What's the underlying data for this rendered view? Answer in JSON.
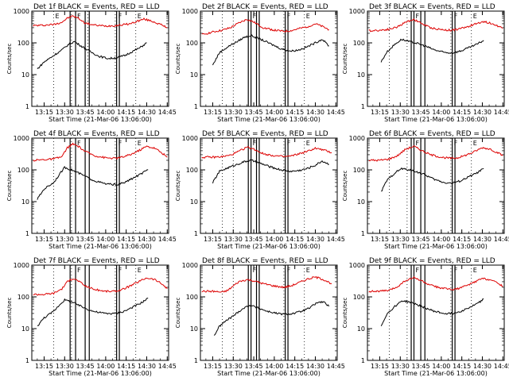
{
  "figure": {
    "x_tick_labels": [
      "13:15",
      "13:30",
      "13:45",
      "14:00",
      "14:15",
      "14:30",
      "14:45"
    ],
    "y_tick_labels": [
      "1",
      "10",
      "100",
      "1000"
    ],
    "ylabel": "Counts/sec",
    "xlabel": "Start Time (21-Mar-06 13:06:00)",
    "colors": {
      "events": "#000000",
      "lld": "#dd0000",
      "frame": "#000000"
    }
  },
  "chart_data": [
    {
      "type": "line",
      "title": "Det 1f BLACK = Events, RED = LLD",
      "xlabel": "Start Time (21-Mar-06 13:06:00)",
      "ylabel": "Counts/sec",
      "xlim": [
        "13:06",
        "14:46"
      ],
      "ylim": [
        1,
        1000
      ],
      "yscale": "log",
      "top_markers": [
        "E",
        "F",
        "F",
        "E"
      ],
      "dotted_lines": [
        "13:22",
        "13:35",
        "13:47",
        "14:07",
        "14:22"
      ],
      "bars": [
        [
          "13:34",
          "13:38"
        ],
        [
          "13:45",
          "13:48"
        ],
        [
          "14:08",
          "14:10"
        ]
      ],
      "series": [
        {
          "color": "red",
          "x": [
            "13:07",
            "13:15",
            "13:22",
            "13:28",
            "13:32",
            "13:36",
            "13:40",
            "13:45",
            "13:52",
            "14:00",
            "14:07",
            "14:12",
            "14:18",
            "14:23",
            "14:28",
            "14:34",
            "14:40",
            "14:45"
          ],
          "values": [
            350,
            360,
            380,
            450,
            600,
            700,
            600,
            420,
            360,
            340,
            350,
            370,
            400,
            480,
            560,
            480,
            380,
            300
          ]
        },
        {
          "color": "black",
          "x": [
            "13:10",
            "13:15",
            "13:22",
            "13:28",
            "13:33",
            "13:37",
            "13:42",
            "13:48",
            "13:55",
            "14:02",
            "14:08",
            "14:14",
            "14:20",
            "14:25",
            "14:30"
          ],
          "values": [
            15,
            25,
            40,
            60,
            90,
            110,
            80,
            55,
            38,
            32,
            34,
            40,
            55,
            70,
            100
          ]
        }
      ]
    },
    {
      "type": "line",
      "title": "Det 2f BLACK = Events, RED = LLD",
      "xlabel": "Start Time (21-Mar-06 13:06:00)",
      "ylabel": "Counts/sec",
      "xlim": [
        "13:06",
        "14:46"
      ],
      "ylim": [
        1,
        1000
      ],
      "yscale": "log",
      "top_markers": [
        "F",
        "F",
        "E"
      ],
      "dotted_lines": [
        "13:22",
        "13:30",
        "14:07",
        "14:22"
      ],
      "bars": [
        [
          "13:41",
          "13:43"
        ],
        [
          "13:47",
          "13:49"
        ],
        [
          "14:08",
          "14:10"
        ]
      ],
      "series": [
        {
          "color": "red",
          "x": [
            "13:07",
            "13:15",
            "13:22",
            "13:28",
            "13:34",
            "13:40",
            "13:45",
            "13:52",
            "14:00",
            "14:07",
            "14:12",
            "14:18",
            "14:24",
            "14:30",
            "14:35",
            "14:40"
          ],
          "values": [
            180,
            220,
            250,
            300,
            420,
            550,
            450,
            300,
            250,
            230,
            240,
            280,
            320,
            400,
            330,
            260
          ]
        },
        {
          "color": "black",
          "x": [
            "13:15",
            "13:20",
            "13:27",
            "13:33",
            "13:38",
            "13:43",
            "13:50",
            "13:58",
            "14:05",
            "14:12",
            "14:18",
            "14:24",
            "14:30",
            "14:35",
            "14:40"
          ],
          "values": [
            20,
            50,
            80,
            110,
            150,
            170,
            130,
            90,
            65,
            55,
            60,
            75,
            100,
            130,
            80
          ]
        }
      ]
    },
    {
      "type": "line",
      "title": "Det 3f BLACK = Events, RED = LLD",
      "xlabel": "Start Time (21-Mar-06 13:06:00)",
      "ylabel": "Counts/sec",
      "xlim": [
        "13:06",
        "14:46"
      ],
      "ylim": [
        1,
        1000
      ],
      "yscale": "log",
      "top_markers": [
        "F",
        "F",
        "E"
      ],
      "dotted_lines": [
        "13:22",
        "13:35",
        "14:07",
        "14:22"
      ],
      "bars": [
        [
          "13:38",
          "13:40"
        ],
        [
          "13:45",
          "13:48"
        ],
        [
          "14:08",
          "14:10"
        ]
      ],
      "series": [
        {
          "color": "red",
          "x": [
            "13:07",
            "13:15",
            "13:22",
            "13:28",
            "13:34",
            "13:40",
            "13:45",
            "13:52",
            "14:00",
            "14:07",
            "14:12",
            "14:18",
            "14:24",
            "14:30",
            "14:36",
            "14:42",
            "14:45"
          ],
          "values": [
            240,
            250,
            270,
            320,
            450,
            550,
            420,
            300,
            260,
            250,
            270,
            310,
            380,
            470,
            420,
            330,
            290
          ]
        },
        {
          "color": "black",
          "x": [
            "13:16",
            "13:20",
            "13:26",
            "13:31",
            "13:36",
            "13:41",
            "13:48",
            "13:55",
            "14:02",
            "14:08",
            "14:14",
            "14:20",
            "14:26",
            "14:31"
          ],
          "values": [
            25,
            50,
            90,
            130,
            110,
            100,
            80,
            60,
            50,
            48,
            55,
            70,
            90,
            120
          ]
        }
      ]
    },
    {
      "type": "line",
      "title": "Det 4f BLACK = Events, RED = LLD",
      "xlabel": "Start Time (21-Mar-06 13:06:00)",
      "ylabel": "Counts/sec",
      "xlim": [
        "13:06",
        "14:46"
      ],
      "ylim": [
        1,
        1000
      ],
      "yscale": "log",
      "top_markers": [
        "F",
        "F",
        "E"
      ],
      "dotted_lines": [
        "13:22",
        "13:35",
        "14:07",
        "14:22"
      ],
      "bars": [
        [
          "13:34",
          "13:38"
        ],
        [
          "13:45",
          "13:48"
        ],
        [
          "14:08",
          "14:10"
        ]
      ],
      "series": [
        {
          "color": "red",
          "x": [
            "13:07",
            "13:15",
            "13:22",
            "13:28",
            "13:32",
            "13:36",
            "13:40",
            "13:45",
            "13:52",
            "14:00",
            "14:07",
            "14:12",
            "14:18",
            "14:24",
            "14:30",
            "14:36",
            "14:42",
            "14:45"
          ],
          "values": [
            200,
            210,
            220,
            260,
            500,
            650,
            550,
            380,
            280,
            240,
            230,
            250,
            300,
            400,
            550,
            480,
            320,
            250
          ]
        },
        {
          "color": "black",
          "x": [
            "13:10",
            "13:15",
            "13:22",
            "13:26",
            "13:30",
            "13:35",
            "13:40",
            "13:46",
            "13:52",
            "14:00",
            "14:08",
            "14:14",
            "14:20",
            "14:26",
            "14:31"
          ],
          "values": [
            12,
            25,
            40,
            70,
            120,
            100,
            80,
            60,
            45,
            36,
            34,
            40,
            55,
            75,
            100
          ]
        }
      ]
    },
    {
      "type": "line",
      "title": "Det 5f BLACK = Events, RED = LLD",
      "xlabel": "Start Time (21-Mar-06 13:06:00)",
      "ylabel": "Counts/sec",
      "xlim": [
        "13:06",
        "14:46"
      ],
      "ylim": [
        1,
        1000
      ],
      "yscale": "log",
      "top_markers": [
        "F",
        "F",
        "E"
      ],
      "dotted_lines": [
        "13:22",
        "13:30",
        "14:07",
        "14:22"
      ],
      "bars": [
        [
          "13:41",
          "13:43"
        ],
        [
          "13:47",
          "13:49"
        ],
        [
          "14:08",
          "14:10"
        ]
      ],
      "series": [
        {
          "color": "red",
          "x": [
            "13:07",
            "13:15",
            "13:22",
            "13:28",
            "13:34",
            "13:40",
            "13:45",
            "13:52",
            "14:00",
            "14:07",
            "14:12",
            "14:18",
            "14:24",
            "14:30",
            "14:36",
            "14:42"
          ],
          "values": [
            250,
            250,
            260,
            290,
            380,
            520,
            450,
            320,
            280,
            260,
            270,
            320,
            380,
            480,
            420,
            350
          ]
        },
        {
          "color": "black",
          "x": [
            "13:15",
            "13:20",
            "13:27",
            "13:33",
            "13:38",
            "13:43",
            "13:50",
            "13:58",
            "14:05",
            "14:12",
            "14:18",
            "14:24",
            "14:30",
            "14:35",
            "14:40"
          ],
          "values": [
            40,
            90,
            120,
            150,
            180,
            200,
            160,
            120,
            100,
            90,
            95,
            110,
            140,
            190,
            150
          ]
        }
      ]
    },
    {
      "type": "line",
      "title": "Det 6f BLACK = Events, RED = LLD",
      "xlabel": "Start Time (21-Mar-06 13:06:00)",
      "ylabel": "Counts/sec",
      "xlim": [
        "13:06",
        "14:46"
      ],
      "ylim": [
        1,
        1000
      ],
      "yscale": "log",
      "top_markers": [
        "F",
        "F",
        "E"
      ],
      "dotted_lines": [
        "13:22",
        "13:35",
        "14:07",
        "14:22"
      ],
      "bars": [
        [
          "13:38",
          "13:40"
        ],
        [
          "13:45",
          "13:48"
        ],
        [
          "14:08",
          "14:10"
        ]
      ],
      "series": [
        {
          "color": "red",
          "x": [
            "13:07",
            "13:15",
            "13:22",
            "13:28",
            "13:34",
            "13:40",
            "13:45",
            "13:52",
            "14:00",
            "14:07",
            "14:12",
            "14:18",
            "14:24",
            "14:30",
            "14:36",
            "14:42",
            "14:45"
          ],
          "values": [
            200,
            200,
            220,
            280,
            450,
            550,
            420,
            300,
            250,
            230,
            240,
            290,
            370,
            500,
            450,
            330,
            280
          ]
        },
        {
          "color": "black",
          "x": [
            "13:16",
            "13:20",
            "13:26",
            "13:31",
            "13:36",
            "13:41",
            "13:48",
            "13:55",
            "14:02",
            "14:08",
            "14:14",
            "14:20",
            "14:26",
            "14:31"
          ],
          "values": [
            20,
            45,
            80,
            110,
            100,
            90,
            70,
            50,
            40,
            38,
            45,
            60,
            80,
            110
          ]
        }
      ]
    },
    {
      "type": "line",
      "title": "Det 7f BLACK = Events, RED = LLD",
      "xlabel": "Start Time (21-Mar-06 13:06:00)",
      "ylabel": "Counts/sec",
      "xlim": [
        "13:06",
        "14:46"
      ],
      "ylim": [
        1,
        1000
      ],
      "yscale": "log",
      "top_markers": [
        "F",
        "F",
        "E"
      ],
      "dotted_lines": [
        "13:22",
        "13:35",
        "14:07",
        "14:22"
      ],
      "bars": [
        [
          "13:34",
          "13:38"
        ],
        [
          "13:45",
          "13:48"
        ],
        [
          "14:08",
          "14:10"
        ]
      ],
      "series": [
        {
          "color": "red",
          "x": [
            "13:07",
            "13:15",
            "13:22",
            "13:28",
            "13:32",
            "13:36",
            "13:40",
            "13:45",
            "13:52",
            "14:00",
            "14:07",
            "14:12",
            "14:18",
            "14:24",
            "14:30",
            "14:36",
            "14:42",
            "14:45"
          ],
          "values": [
            120,
            120,
            130,
            180,
            300,
            380,
            320,
            220,
            170,
            150,
            150,
            170,
            220,
            300,
            400,
            350,
            240,
            180
          ]
        },
        {
          "color": "black",
          "x": [
            "13:10",
            "13:15",
            "13:22",
            "13:26",
            "13:30",
            "13:35",
            "13:40",
            "13:46",
            "13:52",
            "14:00",
            "14:08",
            "14:14",
            "14:20",
            "14:26",
            "14:31"
          ],
          "values": [
            12,
            22,
            35,
            55,
            80,
            70,
            55,
            42,
            34,
            30,
            30,
            36,
            48,
            65,
            90
          ]
        }
      ]
    },
    {
      "type": "line",
      "title": "Det 8f BLACK = Events, RED = LLD",
      "xlabel": "Start Time (21-Mar-06 13:06:00)",
      "ylabel": "Counts/sec",
      "xlim": [
        "13:06",
        "14:46"
      ],
      "ylim": [
        1,
        1000
      ],
      "yscale": "log",
      "top_markers": [
        "F",
        "F",
        "E"
      ],
      "dotted_lines": [
        "13:22",
        "13:30",
        "14:07",
        "14:22"
      ],
      "bars": [
        [
          "13:41",
          "13:43"
        ],
        [
          "13:47",
          "13:49"
        ],
        [
          "14:08",
          "14:10"
        ]
      ],
      "series": [
        {
          "color": "red",
          "x": [
            "13:07",
            "13:15",
            "13:22",
            "13:26",
            "13:30",
            "13:34",
            "13:40",
            "13:45",
            "13:52",
            "14:00",
            "14:07",
            "14:12",
            "14:18",
            "14:24",
            "14:30",
            "14:36",
            "14:42"
          ],
          "values": [
            150,
            150,
            140,
            160,
            220,
            300,
            350,
            320,
            260,
            220,
            200,
            220,
            280,
            360,
            420,
            350,
            260
          ]
        },
        {
          "color": "black",
          "x": [
            "13:16",
            "13:20",
            "13:25",
            "13:30",
            "13:36",
            "13:42",
            "13:48",
            "13:55",
            "14:02",
            "14:08",
            "14:14",
            "14:20",
            "14:26",
            "14:31",
            "14:36",
            "14:40"
          ],
          "values": [
            6,
            12,
            18,
            25,
            40,
            55,
            45,
            35,
            30,
            28,
            30,
            35,
            45,
            65,
            70,
            50
          ]
        }
      ]
    },
    {
      "type": "line",
      "title": "Det 9f BLACK = Events, RED = LLD",
      "xlabel": "Start Time (21-Mar-06 13:06:00)",
      "ylabel": "Counts/sec",
      "xlim": [
        "13:06",
        "14:46"
      ],
      "ylim": [
        1,
        1000
      ],
      "yscale": "log",
      "top_markers": [
        "F",
        "F",
        "E"
      ],
      "dotted_lines": [
        "13:22",
        "13:35",
        "14:07",
        "14:22"
      ],
      "bars": [
        [
          "13:38",
          "13:40"
        ],
        [
          "13:45",
          "13:48"
        ],
        [
          "14:08",
          "14:10"
        ]
      ],
      "series": [
        {
          "color": "red",
          "x": [
            "13:07",
            "13:15",
            "13:22",
            "13:28",
            "13:34",
            "13:40",
            "13:45",
            "13:52",
            "14:00",
            "14:07",
            "14:12",
            "14:18",
            "14:24",
            "14:30",
            "14:36",
            "14:42",
            "14:45"
          ],
          "values": [
            150,
            150,
            160,
            210,
            330,
            400,
            330,
            230,
            190,
            170,
            180,
            220,
            290,
            380,
            350,
            260,
            220
          ]
        },
        {
          "color": "black",
          "x": [
            "13:16",
            "13:20",
            "13:26",
            "13:31",
            "13:36",
            "13:41",
            "13:48",
            "13:55",
            "14:02",
            "14:08",
            "14:14",
            "14:20",
            "14:26",
            "14:31"
          ],
          "values": [
            12,
            28,
            50,
            75,
            70,
            60,
            45,
            35,
            30,
            30,
            35,
            45,
            60,
            85
          ]
        }
      ]
    }
  ]
}
